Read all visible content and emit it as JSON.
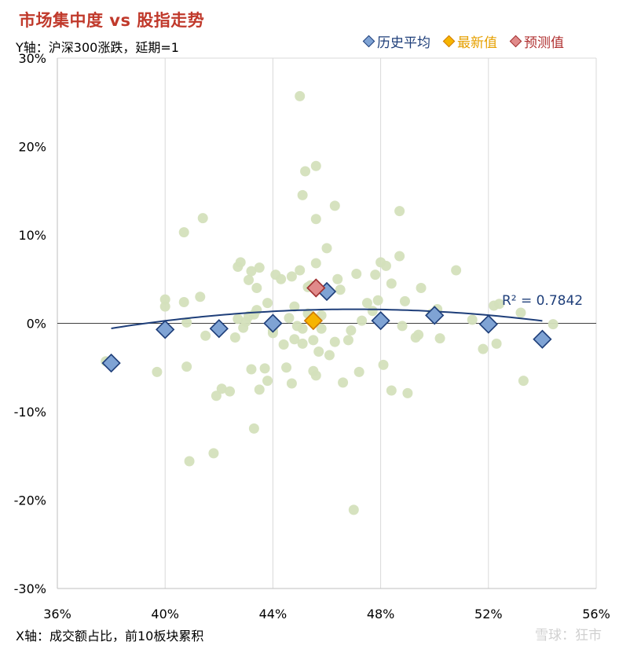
{
  "title": "市场集中度 vs 股指走势",
  "y_note": "Y轴：沪深300涨跌，延期=1",
  "x_note": "X轴：成交额占比，前10板块累积",
  "source": "雪球：狂市",
  "r2_label": "R² = 0.7842",
  "legend": [
    {
      "label": "历史平均",
      "fill": "#7fa3d4",
      "stroke": "#1f3f7a",
      "text_color": "#1f3f7a"
    },
    {
      "label": "最新值",
      "fill": "#f6b400",
      "stroke": "#d07a00",
      "text_color": "#e6a000"
    },
    {
      "label": "预测值",
      "fill": "#e08a8a",
      "stroke": "#a03030",
      "text_color": "#b03030"
    }
  ],
  "chart_data": {
    "type": "scatter",
    "title": "市场集中度 vs 股指走势",
    "xlabel": "X轴：成交额占比，前10板块累积",
    "ylabel": "Y轴：沪深300涨跌，延期=1",
    "xlim": [
      36,
      56
    ],
    "ylim": [
      -30,
      30
    ],
    "x_ticks": [
      "36%",
      "40%",
      "44%",
      "48%",
      "52%",
      "56%"
    ],
    "y_ticks": [
      "30%",
      "20%",
      "10%",
      "0%",
      "-10%",
      "-20%",
      "-30%"
    ],
    "grid": "vertical",
    "legend_position": "top-right",
    "trendline": {
      "type": "polynomial-2",
      "r2": 0.7842,
      "x_range": [
        38,
        54
      ],
      "coefficients": [
        -0.0268,
        2.519,
        -57.6
      ]
    },
    "series": [
      {
        "name": "",
        "color": "#d4e0bc",
        "points": [
          [
            37.8,
            -4.3
          ],
          [
            39.7,
            -5.5
          ],
          [
            40.0,
            2.7
          ],
          [
            40.0,
            1.9
          ],
          [
            40.7,
            2.4
          ],
          [
            40.7,
            10.3
          ],
          [
            40.8,
            0.1
          ],
          [
            40.8,
            -4.9
          ],
          [
            40.9,
            -15.6
          ],
          [
            41.3,
            3.0
          ],
          [
            41.4,
            11.9
          ],
          [
            41.5,
            -1.4
          ],
          [
            41.8,
            -14.7
          ],
          [
            41.9,
            -8.2
          ],
          [
            42.1,
            -7.4
          ],
          [
            42.4,
            -7.7
          ],
          [
            42.6,
            -1.6
          ],
          [
            42.7,
            0.5
          ],
          [
            42.7,
            6.4
          ],
          [
            42.8,
            6.9
          ],
          [
            42.9,
            -0.5
          ],
          [
            43.0,
            0.2
          ],
          [
            43.1,
            0.8
          ],
          [
            43.1,
            4.9
          ],
          [
            43.2,
            5.9
          ],
          [
            43.2,
            -5.2
          ],
          [
            43.3,
            -11.9
          ],
          [
            43.3,
            1.0
          ],
          [
            43.4,
            4.0
          ],
          [
            43.4,
            1.5
          ],
          [
            43.5,
            6.3
          ],
          [
            43.5,
            -7.5
          ],
          [
            43.7,
            -5.1
          ],
          [
            43.8,
            -6.5
          ],
          [
            43.8,
            2.3
          ],
          [
            44.0,
            -1.1
          ],
          [
            44.0,
            -0.8
          ],
          [
            44.1,
            5.5
          ],
          [
            44.3,
            5.0
          ],
          [
            44.4,
            -2.4
          ],
          [
            44.5,
            -5.0
          ],
          [
            44.6,
            0.6
          ],
          [
            44.7,
            5.3
          ],
          [
            44.7,
            -6.8
          ],
          [
            44.8,
            1.9
          ],
          [
            44.8,
            -1.8
          ],
          [
            44.9,
            -0.3
          ],
          [
            45.0,
            6.0
          ],
          [
            45.0,
            25.7
          ],
          [
            45.1,
            14.5
          ],
          [
            45.1,
            -2.3
          ],
          [
            45.1,
            -0.6
          ],
          [
            45.2,
            17.2
          ],
          [
            45.3,
            4.1
          ],
          [
            45.3,
            1.1
          ],
          [
            45.4,
            0.7
          ],
          [
            45.4,
            4.3
          ],
          [
            45.5,
            -1.9
          ],
          [
            45.5,
            -5.4
          ],
          [
            45.6,
            11.8
          ],
          [
            45.6,
            17.8
          ],
          [
            45.6,
            -5.9
          ],
          [
            45.6,
            6.8
          ],
          [
            45.7,
            -3.2
          ],
          [
            45.8,
            -0.6
          ],
          [
            45.8,
            0.9
          ],
          [
            46.0,
            8.5
          ],
          [
            46.1,
            -3.6
          ],
          [
            46.3,
            -2.1
          ],
          [
            46.3,
            13.3
          ],
          [
            46.4,
            5.0
          ],
          [
            46.5,
            3.8
          ],
          [
            46.6,
            -6.7
          ],
          [
            46.8,
            -1.9
          ],
          [
            46.9,
            -0.8
          ],
          [
            47.0,
            -21.1
          ],
          [
            47.1,
            5.6
          ],
          [
            47.2,
            -5.5
          ],
          [
            47.3,
            0.3
          ],
          [
            47.5,
            2.3
          ],
          [
            47.7,
            1.4
          ],
          [
            47.8,
            5.5
          ],
          [
            47.9,
            2.6
          ],
          [
            48.0,
            6.9
          ],
          [
            48.1,
            -4.7
          ],
          [
            48.2,
            6.5
          ],
          [
            48.4,
            4.5
          ],
          [
            48.4,
            -7.6
          ],
          [
            48.7,
            7.6
          ],
          [
            48.7,
            12.7
          ],
          [
            48.8,
            -0.3
          ],
          [
            48.9,
            2.5
          ],
          [
            49.0,
            -7.9
          ],
          [
            49.3,
            -1.6
          ],
          [
            49.4,
            -1.3
          ],
          [
            49.5,
            4.0
          ],
          [
            49.9,
            1.1
          ],
          [
            50.1,
            1.6
          ],
          [
            50.2,
            -1.7
          ],
          [
            50.8,
            6.0
          ],
          [
            51.4,
            0.4
          ],
          [
            51.8,
            -2.9
          ],
          [
            52.2,
            2.0
          ],
          [
            52.3,
            -2.3
          ],
          [
            52.4,
            2.2
          ],
          [
            53.2,
            1.2
          ],
          [
            53.3,
            -6.5
          ],
          [
            54.4,
            -0.1
          ]
        ]
      },
      {
        "name": "历史平均",
        "color": "#7fa3d4",
        "points": [
          [
            38,
            -4.5
          ],
          [
            40,
            -0.7
          ],
          [
            42,
            -0.6
          ],
          [
            44,
            0.0
          ],
          [
            46,
            3.6
          ],
          [
            48,
            0.3
          ],
          [
            50,
            0.9
          ],
          [
            52,
            -0.1
          ],
          [
            54,
            -1.8
          ]
        ]
      },
      {
        "name": "最新值",
        "color": "#f6b400",
        "points": [
          [
            45.5,
            0.3
          ]
        ]
      },
      {
        "name": "预测值",
        "color": "#e08a8a",
        "points": [
          [
            45.6,
            4.0
          ]
        ]
      }
    ]
  }
}
